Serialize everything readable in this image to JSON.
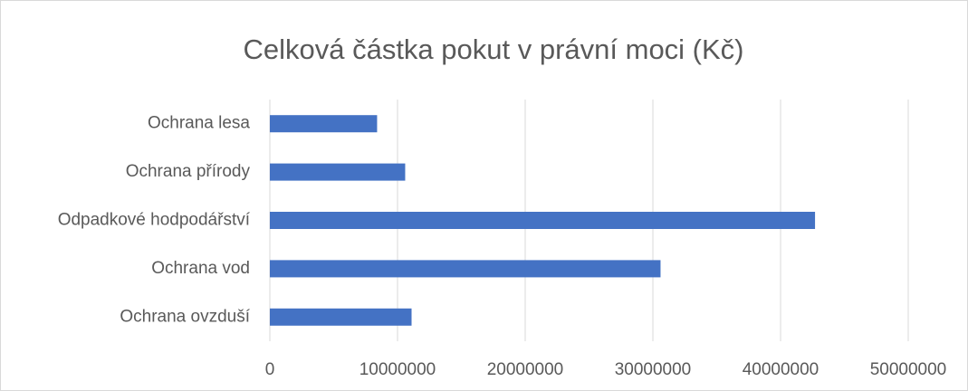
{
  "chart_data": {
    "type": "bar",
    "orientation": "horizontal",
    "title": "Celková částka pokut v právní moci (Kč)",
    "categories": [
      "Ochrana lesa",
      "Ochrana přírody",
      "Odpadkové hodpodářství",
      "Ochrana vod",
      "Ochrana ovzduší"
    ],
    "values": [
      8400000,
      10600000,
      42700000,
      30600000,
      11100000
    ],
    "color": "#4472c4",
    "xlim": [
      0,
      50000000
    ],
    "xticks": [
      0,
      10000000,
      20000000,
      30000000,
      40000000,
      50000000
    ],
    "grid": true
  }
}
